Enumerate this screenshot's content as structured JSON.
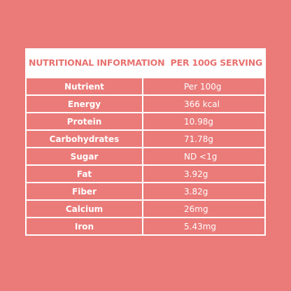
{
  "title": "NUTRITIONAL INFORMATION  PER 100G SERVING",
  "table": {
    "header": [
      "Nutrient",
      "Per 100g"
    ],
    "rows": [
      [
        "Energy",
        "366 kcal"
      ],
      [
        "Protein",
        "10.98g"
      ],
      [
        "Carbohydrates",
        "71.78g"
      ],
      [
        "Sugar",
        "ND <1g"
      ],
      [
        "Fat",
        "3.92g"
      ],
      [
        "Fiber",
        "3.82g"
      ],
      [
        "Calcium",
        "26mg"
      ],
      [
        "Iron",
        "5.43mg"
      ]
    ]
  }
}
